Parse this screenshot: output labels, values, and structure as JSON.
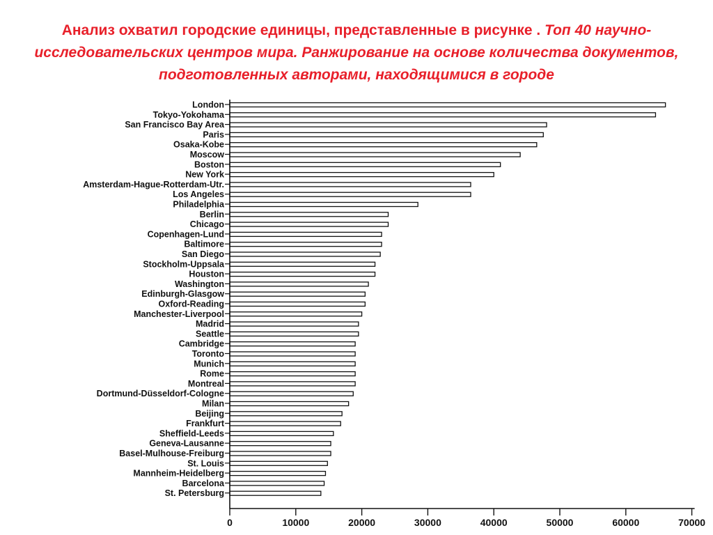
{
  "title": {
    "lead": "Анализ охватил городские единицы, представленные в рисунке . ",
    "italic": "Топ 40 научно-исследовательских центров мира. Ранжирование на основе количества документов, подготовленных авторами, находящимися в городе"
  },
  "chart_data": {
    "type": "bar",
    "orientation": "horizontal",
    "categories": [
      "London",
      "Tokyo-Yokohama",
      "San Francisco Bay Area",
      "Paris",
      "Osaka-Kobe",
      "Moscow",
      "Boston",
      "New York",
      "Amsterdam-Hague-Rotterdam-Utr.",
      "Los Angeles",
      "Philadelphia",
      "Berlin",
      "Chicago",
      "Copenhagen-Lund",
      "Baltimore",
      "San Diego",
      "Stockholm-Uppsala",
      "Houston",
      "Washington",
      "Edinburgh-Glasgow",
      "Oxford-Reading",
      "Manchester-Liverpool",
      "Madrid",
      "Seattle",
      "Cambridge",
      "Toronto",
      "Munich",
      "Rome",
      "Montreal",
      "Dortmund-Düsseldorf-Cologne",
      "Milan",
      "Beijing",
      "Frankfurt",
      "Sheffield-Leeds",
      "Geneva-Lausanne",
      "Basel-Mulhouse-Freiburg",
      "St. Louis",
      "Mannheim-Heidelberg",
      "Barcelona",
      "St. Petersburg"
    ],
    "values": [
      66000,
      64500,
      48000,
      47500,
      46500,
      44000,
      41000,
      40000,
      36500,
      36500,
      28500,
      24000,
      24000,
      23000,
      23000,
      22800,
      22000,
      22000,
      21000,
      20500,
      20500,
      20000,
      19500,
      19500,
      19000,
      19000,
      19000,
      19000,
      19000,
      18700,
      18000,
      17000,
      16800,
      15700,
      15300,
      15300,
      14800,
      14500,
      14300,
      13800
    ],
    "xlim": [
      0,
      70000
    ],
    "xticks": [
      0,
      10000,
      20000,
      30000,
      40000,
      50000,
      60000,
      70000
    ],
    "xtick_labels": [
      "0",
      "10000",
      "20000",
      "30000",
      "40000",
      "50000",
      "60000",
      "70000"
    ],
    "grid": false,
    "bar_fill": "#ffffff",
    "bar_stroke": "#111111"
  }
}
